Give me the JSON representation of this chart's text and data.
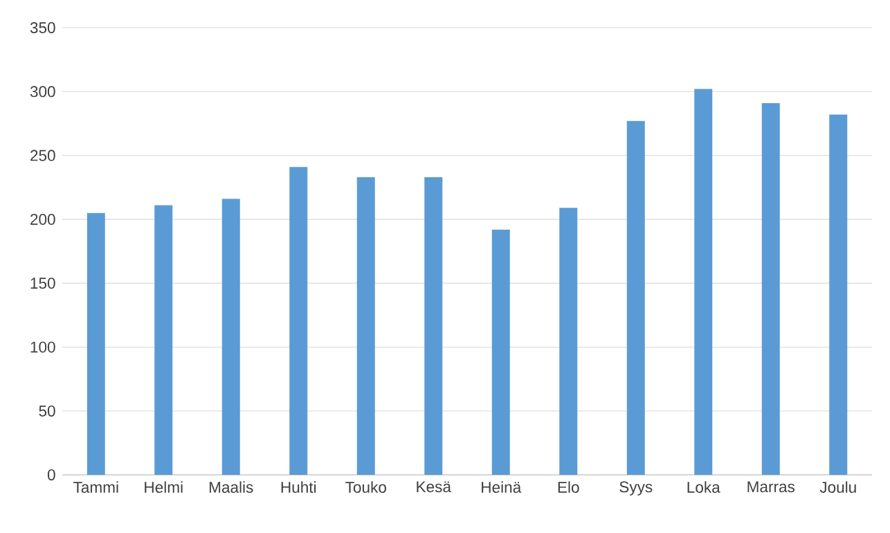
{
  "chart_data": {
    "type": "bar",
    "categories": [
      "Tammi",
      "Helmi",
      "Maalis",
      "Huhti",
      "Touko",
      "Kesä",
      "Heinä",
      "Elo",
      "Syys",
      "Loka",
      "Marras",
      "Joulu"
    ],
    "values": [
      205,
      211,
      216,
      241,
      233,
      233,
      192,
      209,
      277,
      302,
      291,
      282
    ],
    "color": "#5b9bd5",
    "ylim": [
      0,
      350
    ],
    "yticks": [
      0,
      50,
      100,
      150,
      200,
      250,
      300,
      350
    ],
    "grid": "y"
  }
}
